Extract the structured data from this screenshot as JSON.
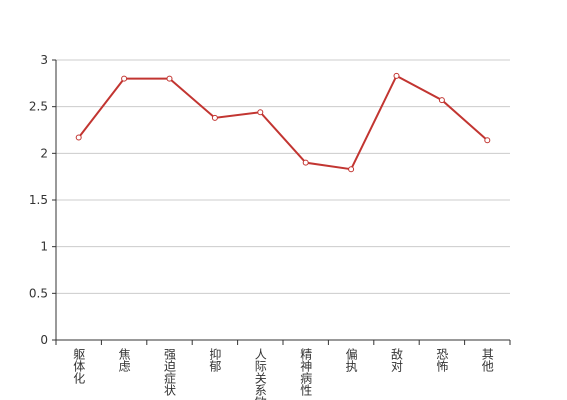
{
  "chart_data": {
    "type": "line",
    "categories": [
      "躯体化",
      "焦虑",
      "强迫症状",
      "抑郁",
      "人际关系敏感",
      "精神病性",
      "偏执",
      "敌对",
      "恐怖",
      "其他"
    ],
    "series": [
      {
        "color": "#c23531",
        "values": [
          2.17,
          2.8,
          2.8,
          2.38,
          2.44,
          1.9,
          1.83,
          2.83,
          2.57,
          2.14
        ]
      }
    ],
    "ylim": [
      0,
      3
    ],
    "yticks": [
      0,
      0.5,
      1,
      1.5,
      2,
      2.5,
      3
    ],
    "grid": true
  }
}
